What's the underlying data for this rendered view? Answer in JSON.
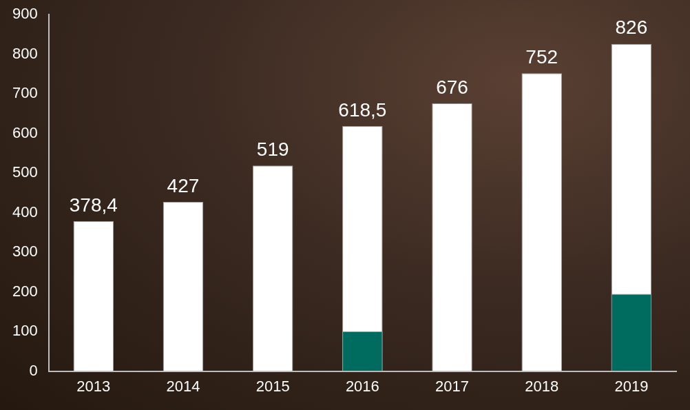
{
  "chart_data": {
    "type": "bar",
    "categories": [
      "2013",
      "2014",
      "2015",
      "2016",
      "2017",
      "2018",
      "2019"
    ],
    "series": [
      {
        "color": "#ffffff",
        "values": [
          378.4,
          427,
          519,
          618.5,
          676,
          752,
          826
        ],
        "value_labels": [
          "378,4",
          "427",
          "519",
          "618,5",
          "676",
          "752",
          "826"
        ]
      },
      {
        "color": "#006b5f",
        "values": [
          null,
          null,
          null,
          100,
          null,
          null,
          195
        ]
      }
    ],
    "ylim": [
      0,
      900
    ],
    "yticks": [
      0,
      100,
      200,
      300,
      400,
      500,
      600,
      700,
      800,
      900
    ],
    "grid": false,
    "data_labels": true
  }
}
